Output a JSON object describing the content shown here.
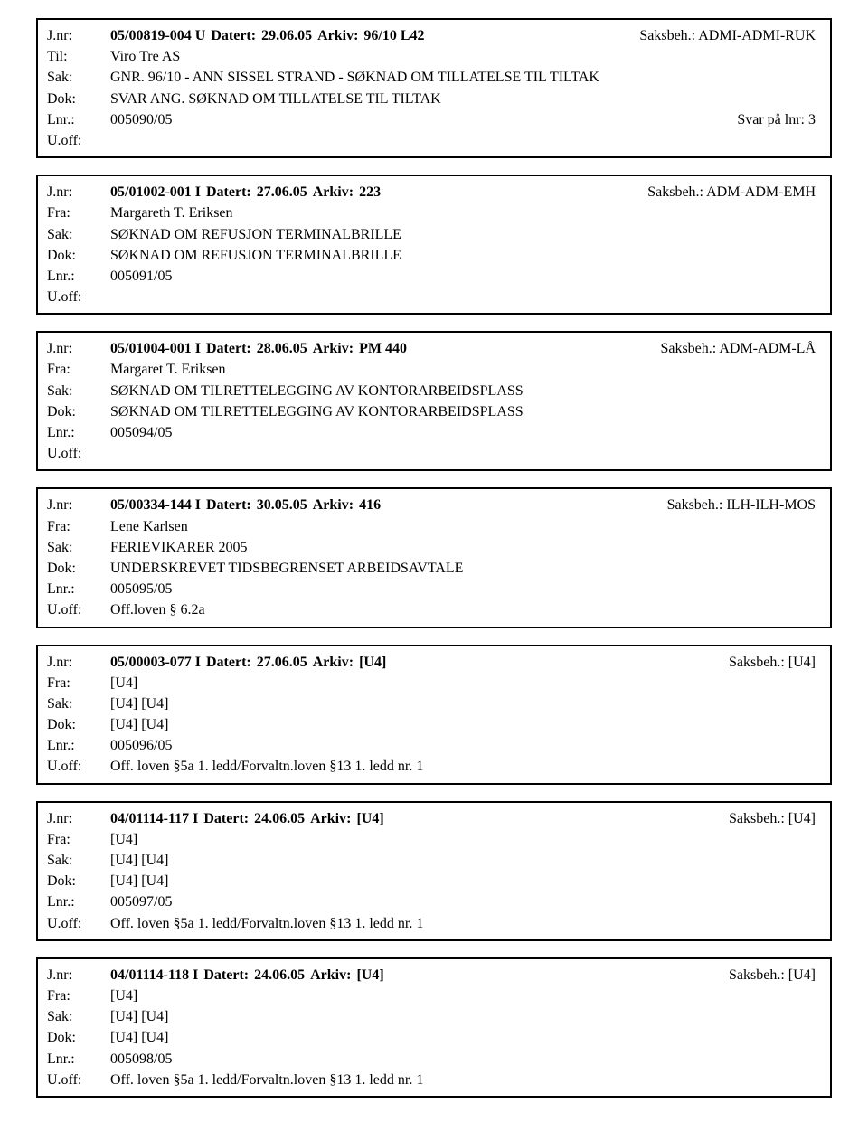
{
  "labels": {
    "jnr": "J.nr:",
    "til": "Til:",
    "fra": "Fra:",
    "sak": "Sak:",
    "dok": "Dok:",
    "lnr": "Lnr.:",
    "uoff": "U.off:",
    "datert": "Datert:",
    "arkiv": "Arkiv:",
    "saksbeh": "Saksbeh.:"
  },
  "records": [
    {
      "jnr": "05/00819-004 U",
      "datert": "29.06.05",
      "arkiv": "96/10 L42",
      "saksbeh": "ADMI-ADMI-RUK",
      "party_label": "Til:",
      "party": "Viro Tre AS",
      "sak": "GNR. 96/10 - ANN SISSEL STRAND - SØKNAD OM TILLATELSE TIL TILTAK",
      "dok": "SVAR ANG. SØKNAD OM TILLATELSE TIL TILTAK",
      "lnr": "005090/05",
      "svar": "Svar på lnr: 3",
      "uoff": ""
    },
    {
      "jnr": "05/01002-001 I",
      "datert": "27.06.05",
      "arkiv": "223",
      "saksbeh": "ADM-ADM-EMH",
      "party_label": "Fra:",
      "party": "Margareth T. Eriksen",
      "sak": "SØKNAD OM REFUSJON TERMINALBRILLE",
      "dok": "SØKNAD OM REFUSJON TERMINALBRILLE",
      "lnr": "005091/05",
      "svar": "",
      "uoff": ""
    },
    {
      "jnr": "05/01004-001 I",
      "datert": "28.06.05",
      "arkiv": "PM 440",
      "saksbeh": "ADM-ADM-LÅ",
      "party_label": "Fra:",
      "party": "Margaret T. Eriksen",
      "sak": "SØKNAD OM TILRETTELEGGING AV KONTORARBEIDSPLASS",
      "dok": "SØKNAD OM TILRETTELEGGING AV KONTORARBEIDSPLASS",
      "lnr": "005094/05",
      "svar": "",
      "uoff": ""
    },
    {
      "jnr": "05/00334-144 I",
      "datert": "30.05.05",
      "arkiv": "416",
      "saksbeh": "ILH-ILH-MOS",
      "party_label": "Fra:",
      "party": "Lene Karlsen",
      "sak": "FERIEVIKARER 2005",
      "dok": "UNDERSKREVET TIDSBEGRENSET ARBEIDSAVTALE",
      "lnr": "005095/05",
      "svar": "",
      "uoff": "Off.loven § 6.2a"
    },
    {
      "jnr": "05/00003-077 I",
      "datert": "27.06.05",
      "arkiv": "[U4]",
      "saksbeh": "[U4]",
      "party_label": "Fra:",
      "party": "[U4]",
      "sak": "[U4] [U4]",
      "dok": "[U4] [U4]",
      "lnr": "005096/05",
      "svar": "",
      "uoff": "Off. loven §5a 1. ledd/Forvaltn.loven §13 1. ledd nr. 1"
    },
    {
      "jnr": "04/01114-117 I",
      "datert": "24.06.05",
      "arkiv": "[U4]",
      "saksbeh": "[U4]",
      "party_label": "Fra:",
      "party": "[U4]",
      "sak": "[U4] [U4]",
      "dok": "[U4] [U4]",
      "lnr": "005097/05",
      "svar": "",
      "uoff": "Off. loven §5a 1. ledd/Forvaltn.loven §13 1. ledd nr. 1"
    },
    {
      "jnr": "04/01114-118 I",
      "datert": "24.06.05",
      "arkiv": "[U4]",
      "saksbeh": "[U4]",
      "party_label": "Fra:",
      "party": "[U4]",
      "sak": "[U4] [U4]",
      "dok": "[U4] [U4]",
      "lnr": "005098/05",
      "svar": "",
      "uoff": "Off. loven §5a 1. ledd/Forvaltn.loven §13 1. ledd nr. 1"
    }
  ]
}
